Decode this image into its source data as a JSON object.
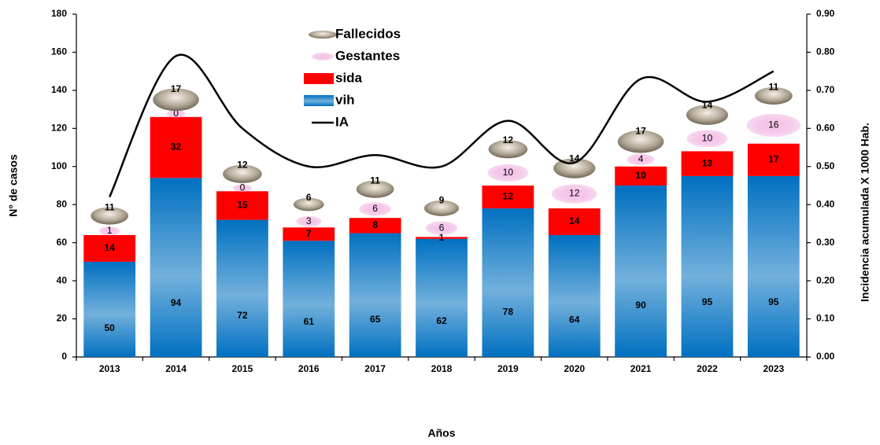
{
  "chart_data": {
    "type": "stacked-bar-line",
    "x_label": "Años",
    "y_label": "N° de casos",
    "y2_label": "Incidencia acumulada X 1000 Hab.",
    "categories": [
      "2013",
      "2014",
      "2015",
      "2016",
      "2017",
      "2018",
      "2019",
      "2020",
      "2021",
      "2022",
      "2023"
    ],
    "series": [
      {
        "name": "vih",
        "color": "#0070c0",
        "kind": "bar",
        "values": [
          50,
          94,
          72,
          61,
          65,
          62,
          78,
          64,
          90,
          95,
          95
        ]
      },
      {
        "name": "sida",
        "color": "#ff0000",
        "kind": "bar",
        "values": [
          14,
          32,
          15,
          7,
          8,
          1,
          12,
          14,
          10,
          13,
          17
        ]
      },
      {
        "name": "Gestantes",
        "color": "#e88ad0",
        "kind": "marker",
        "values": [
          1,
          0,
          0,
          3,
          6,
          6,
          10,
          12,
          4,
          10,
          16
        ]
      },
      {
        "name": "Fallecidos",
        "color": "#b5aa98",
        "kind": "marker",
        "values": [
          11,
          17,
          12,
          6,
          11,
          9,
          12,
          14,
          17,
          14,
          11
        ]
      },
      {
        "name": "IA",
        "color": "#000000",
        "kind": "line",
        "axis": "y2",
        "values": [
          0.42,
          0.79,
          0.6,
          0.5,
          0.53,
          0.5,
          0.62,
          0.51,
          0.73,
          0.67,
          0.75
        ]
      }
    ],
    "ylim": [
      0,
      180
    ],
    "yticks": [
      0,
      20,
      40,
      60,
      80,
      100,
      120,
      140,
      160,
      180
    ],
    "y2lim": [
      0,
      0.9
    ],
    "y2ticks": [
      {
        "value": 0,
        "label": "0.00"
      },
      {
        "value": 0.1,
        "label": "0.10"
      },
      {
        "value": 0.2,
        "label": "0.20"
      },
      {
        "value": 0.3,
        "label": "0.30"
      },
      {
        "value": 0.4,
        "label": "0.40"
      },
      {
        "value": 0.5,
        "label": "0.50"
      },
      {
        "value": 0.6,
        "label": "0.60"
      },
      {
        "value": 0.7,
        "label": "0.70"
      },
      {
        "value": 0.8,
        "label": "0.80"
      },
      {
        "value": 0.9,
        "label": "0.90"
      }
    ],
    "grid": false
  }
}
